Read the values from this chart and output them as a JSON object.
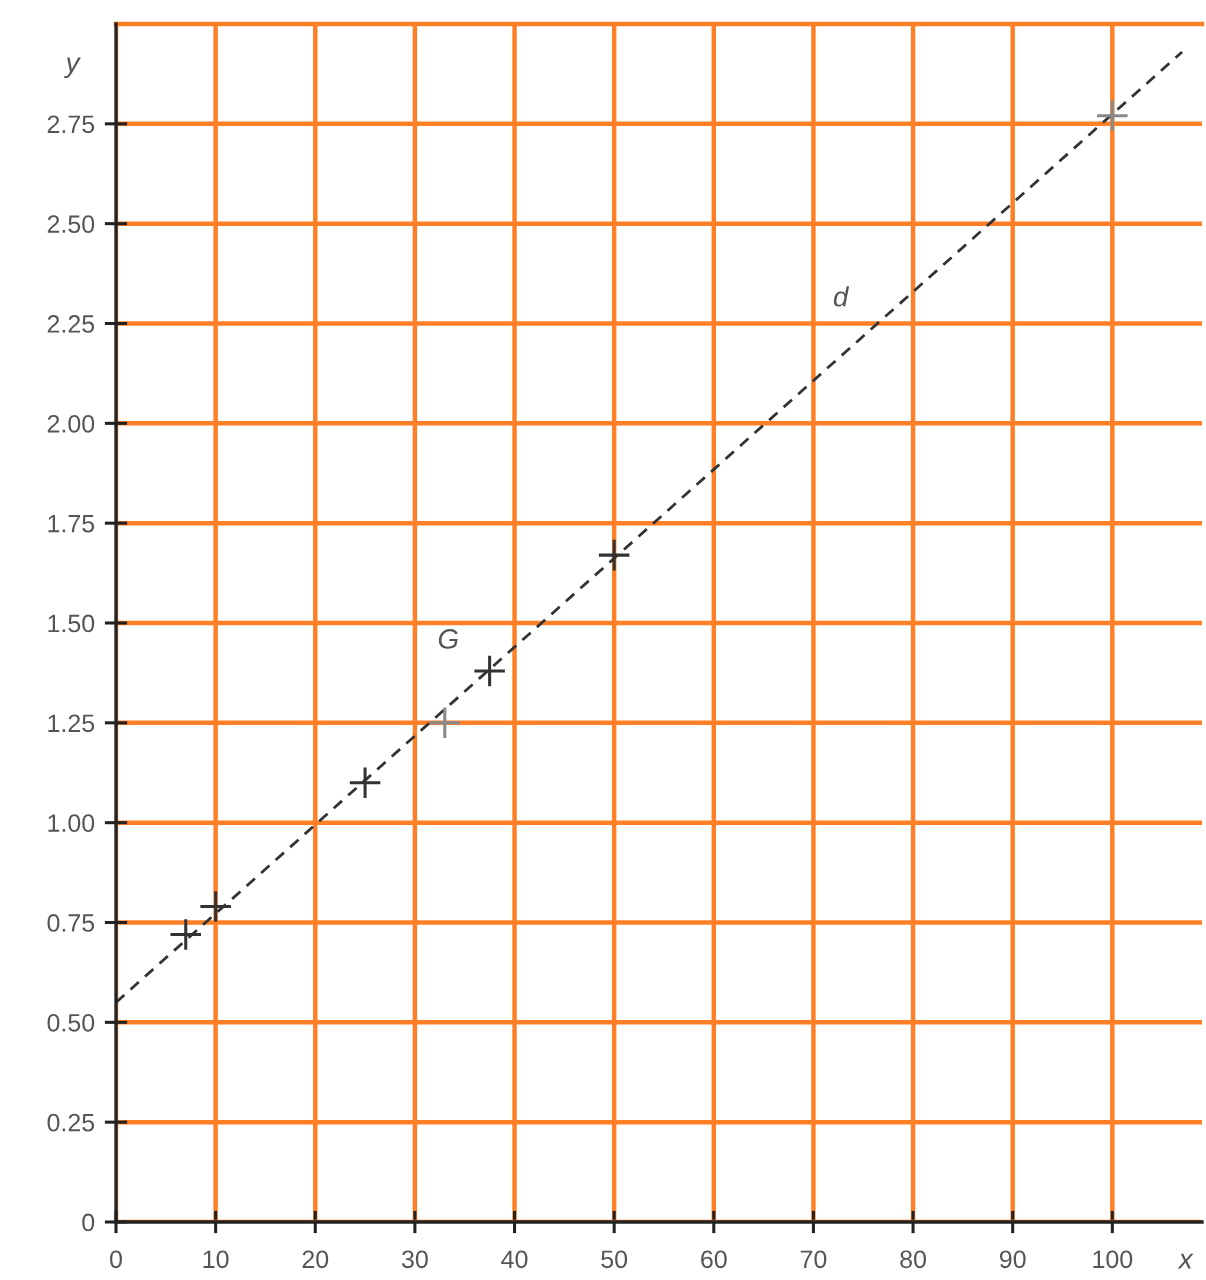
{
  "chart_data": {
    "type": "scatter",
    "xlabel": "x",
    "ylabel": "y",
    "xlim": [
      0,
      109
    ],
    "ylim": [
      0,
      3
    ],
    "xticks": [
      0,
      10,
      20,
      30,
      40,
      50,
      60,
      70,
      80,
      90,
      100
    ],
    "yticks": [
      0,
      0.25,
      {
        "value": 0.5,
        "label": "0.50"
      },
      0.75,
      {
        "value": 1.0,
        "label": "1.00"
      },
      1.25,
      {
        "value": 1.5,
        "label": "1.50"
      },
      1.75,
      {
        "value": 2.0,
        "label": "2.00"
      },
      2.25,
      {
        "value": 2.5,
        "label": "2.50"
      },
      2.75
    ],
    "grid": true,
    "marker": "cross",
    "series": [
      {
        "color": "#333333",
        "x": [
          7,
          10,
          25,
          50
        ],
        "values": [
          0.72,
          0.79,
          1.1,
          1.67
        ]
      },
      {
        "color": "#888888",
        "x": [
          33,
          100
        ],
        "values": [
          1.25,
          2.77
        ]
      },
      {
        "name": "G",
        "color": "#333333",
        "x": [
          37.5
        ],
        "values": [
          1.38
        ]
      },
      {
        "type": "line",
        "name": "d",
        "color": "#333333",
        "line_style": "dashed",
        "marker": "none",
        "x": [
          0,
          107
        ],
        "values": [
          0.55,
          2.93
        ]
      }
    ]
  }
}
